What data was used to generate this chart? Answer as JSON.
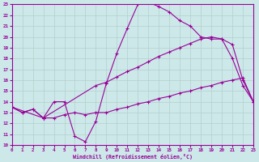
{
  "xlabel": "Windchill (Refroidissement éolien,°C)",
  "xlim": [
    0,
    23
  ],
  "ylim": [
    10,
    23
  ],
  "yticks": [
    10,
    11,
    12,
    13,
    14,
    15,
    16,
    17,
    18,
    19,
    20,
    21,
    22,
    23
  ],
  "xticks": [
    0,
    1,
    2,
    3,
    4,
    5,
    6,
    7,
    8,
    9,
    10,
    11,
    12,
    13,
    14,
    15,
    16,
    17,
    18,
    19,
    20,
    21,
    22,
    23
  ],
  "line_color": "#990099",
  "bg_color": "#cce8e8",
  "line1_x": [
    0,
    1,
    2,
    3,
    4,
    5,
    6,
    7,
    8,
    9,
    10,
    11,
    12,
    13,
    14,
    15,
    16,
    17,
    18,
    19,
    20,
    21,
    22,
    23
  ],
  "line1_y": [
    13.5,
    13.0,
    13.3,
    12.5,
    14.0,
    14.0,
    10.8,
    10.3,
    12.2,
    15.7,
    18.5,
    20.8,
    23.0,
    23.2,
    22.8,
    22.3,
    21.5,
    21.0,
    20.0,
    19.8,
    19.8,
    18.0,
    15.5,
    14.0
  ],
  "line2_x": [
    0,
    3,
    8,
    9,
    10,
    11,
    12,
    13,
    14,
    15,
    16,
    17,
    18,
    19,
    20,
    21,
    22,
    23
  ],
  "line2_y": [
    13.5,
    12.5,
    15.5,
    15.8,
    16.3,
    16.8,
    17.2,
    17.7,
    18.2,
    18.6,
    19.0,
    19.4,
    19.8,
    20.0,
    19.8,
    19.3,
    16.0,
    14.0
  ],
  "line3_x": [
    0,
    1,
    2,
    3,
    4,
    5,
    6,
    7,
    8,
    9,
    10,
    11,
    12,
    13,
    14,
    15,
    16,
    17,
    18,
    19,
    20,
    21,
    22,
    23
  ],
  "line3_y": [
    13.5,
    13.0,
    13.3,
    12.5,
    12.5,
    12.8,
    13.0,
    12.8,
    13.0,
    13.0,
    13.3,
    13.5,
    13.8,
    14.0,
    14.3,
    14.5,
    14.8,
    15.0,
    15.3,
    15.5,
    15.8,
    16.0,
    16.2,
    14.0
  ]
}
